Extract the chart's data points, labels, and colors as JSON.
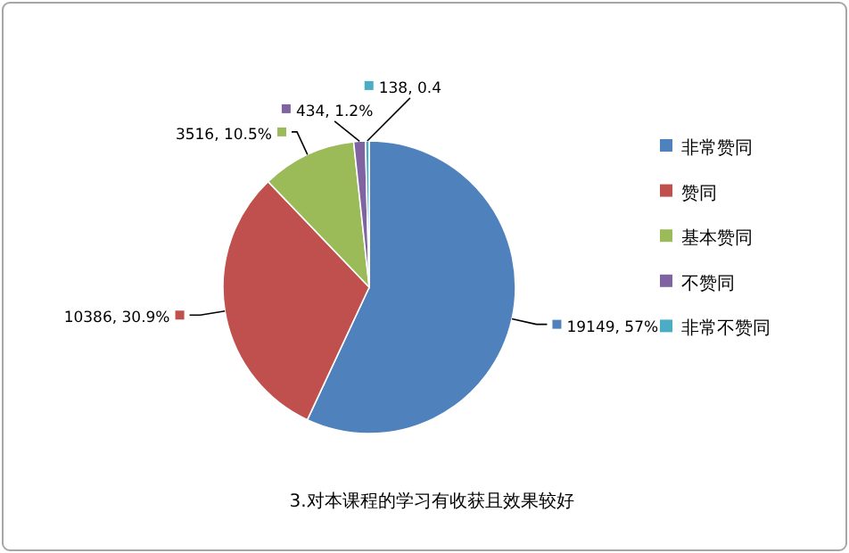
{
  "chart_data": {
    "type": "pie",
    "title": "3.对本课程的学习有收获且效果较好",
    "categories": [
      "非常赞同",
      "赞同",
      "基本赞同",
      "不赞同",
      "非常不赞同"
    ],
    "values": [
      19149,
      10386,
      3516,
      434,
      138
    ],
    "colors": [
      "#4f81bd",
      "#c0504d",
      "#9bbb59",
      "#8064a2",
      "#4bacc6"
    ],
    "value_labels": [
      "19149, 57%",
      "10386, 30.9%",
      "3516, 10.5%",
      "434, 1.2%",
      "138, 0.4"
    ],
    "legend": "right"
  }
}
